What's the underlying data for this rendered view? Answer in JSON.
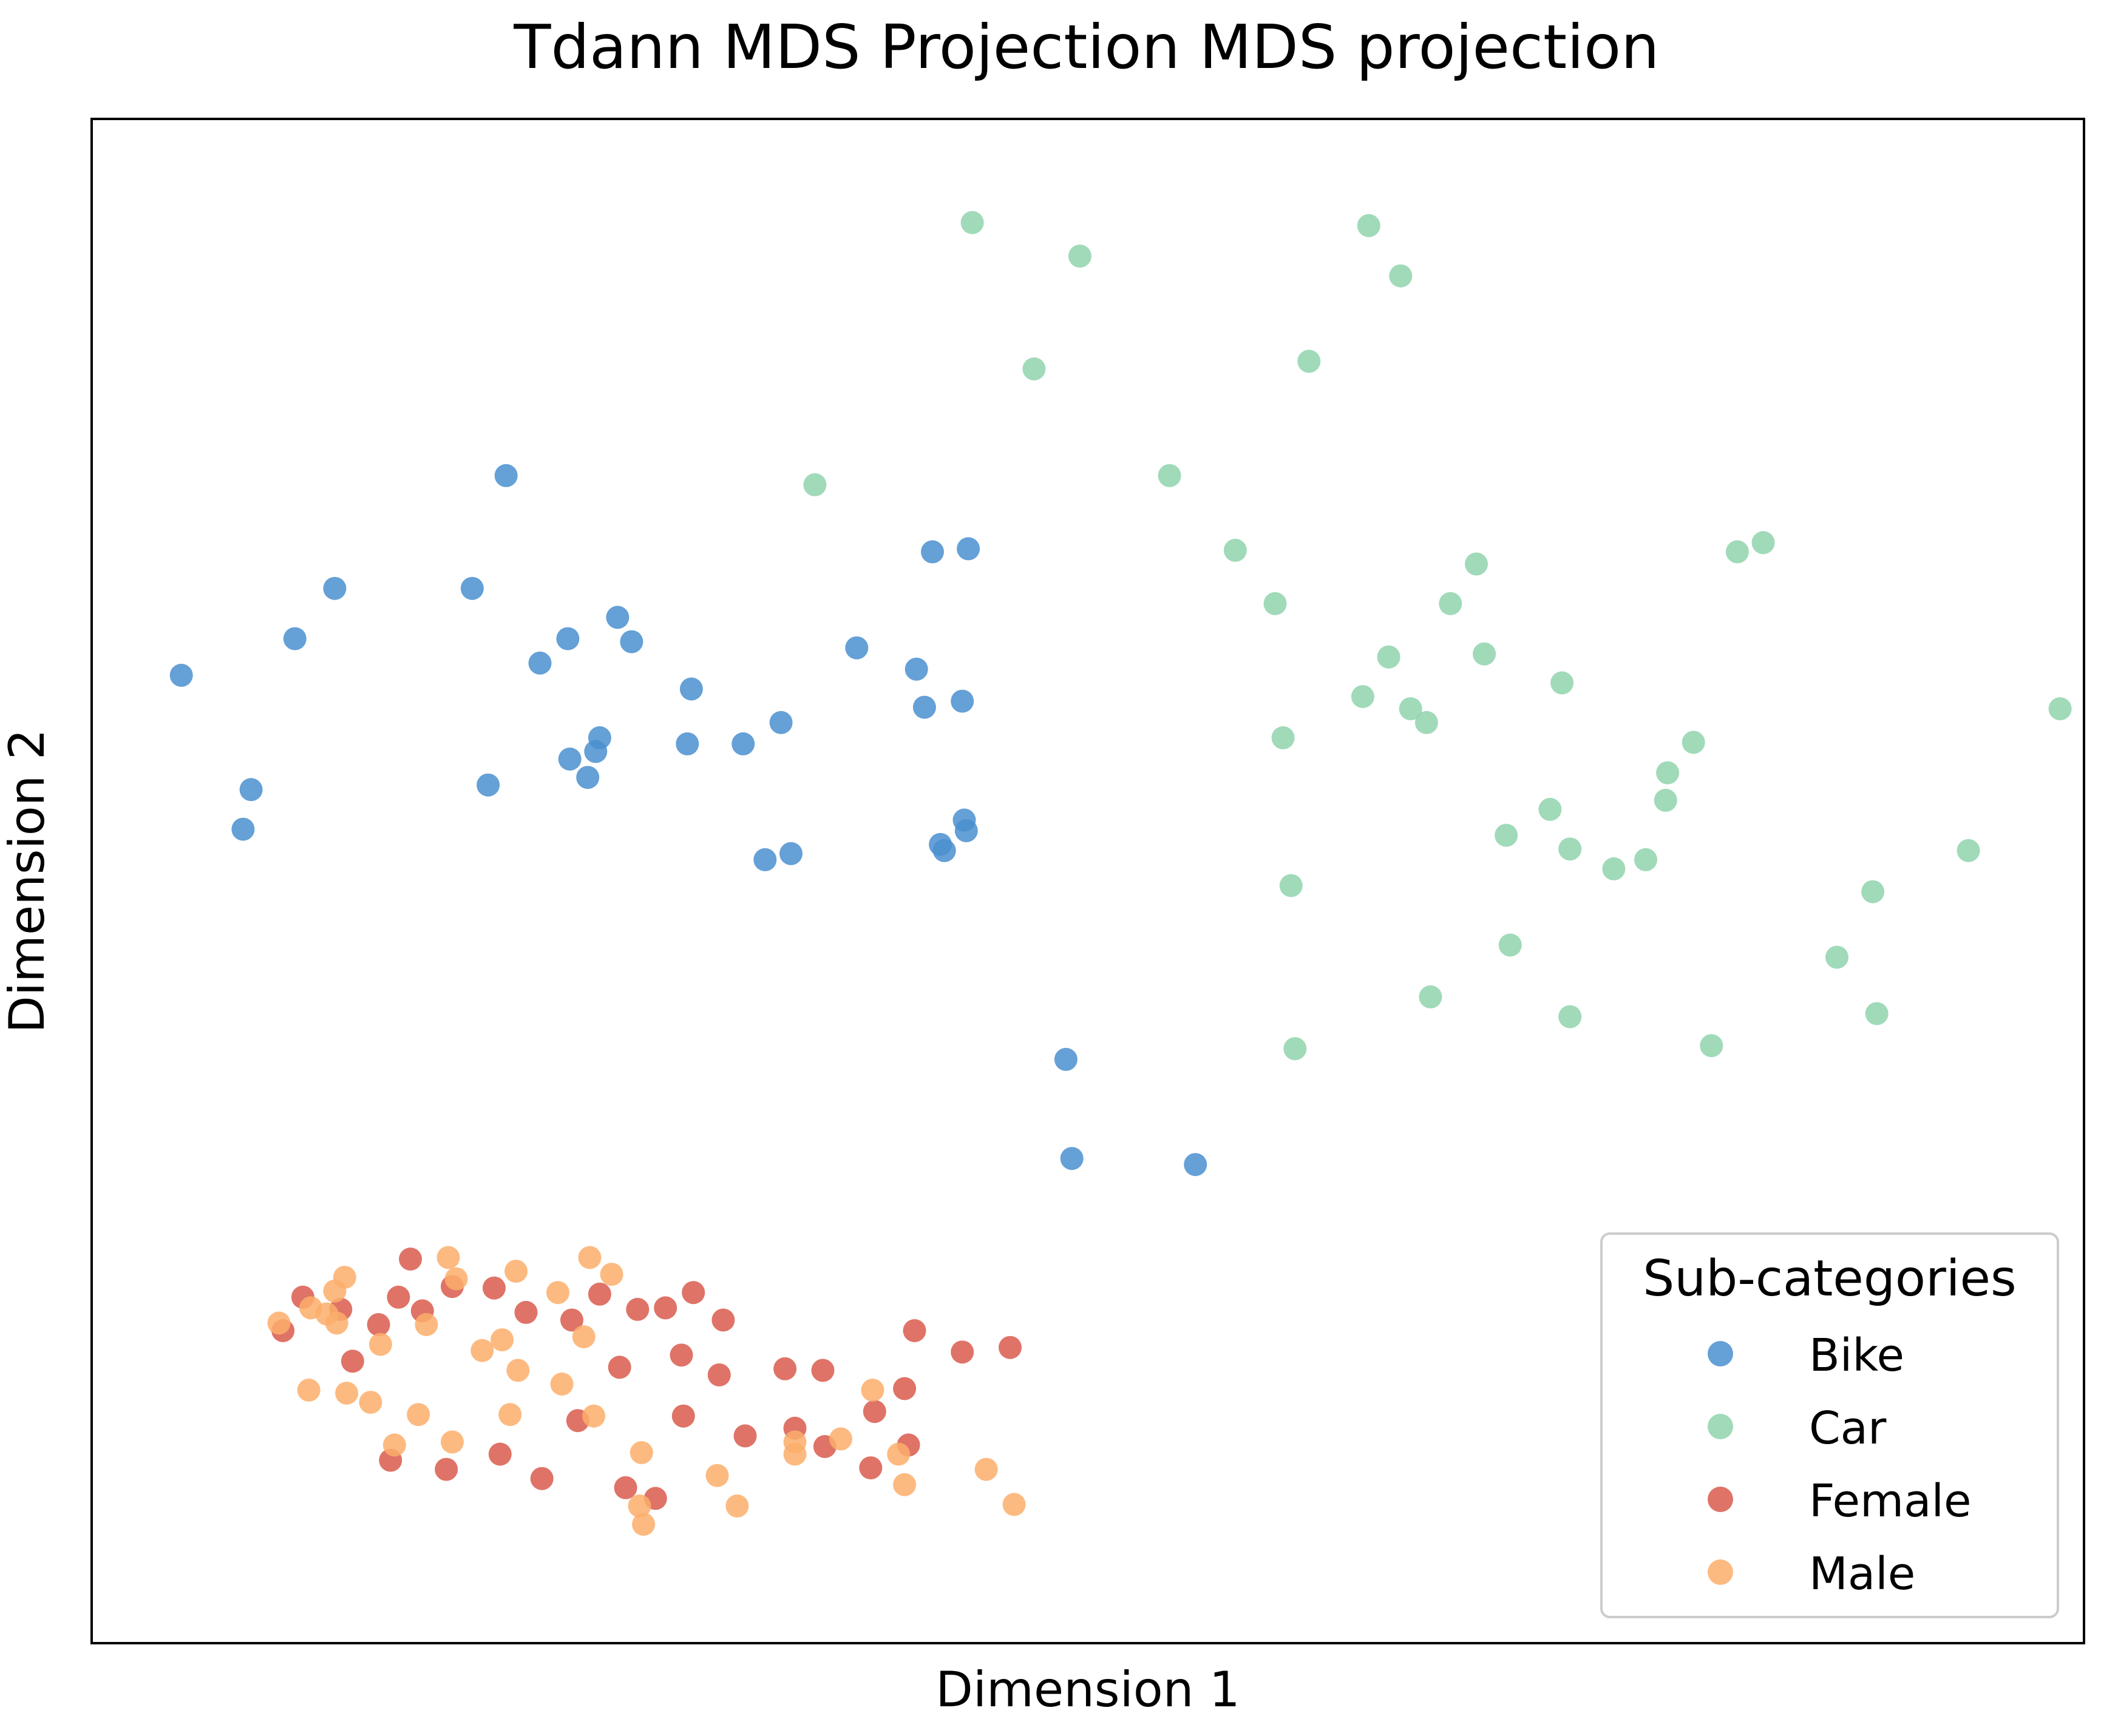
{
  "chart_data": {
    "type": "scatter",
    "title": "Tdann MDS Projection MDS projection",
    "xlabel": "Dimension 1",
    "ylabel": "Dimension 2",
    "xlim": [
      0,
      100
    ],
    "ylim": [
      0,
      100
    ],
    "xticks": false,
    "yticks": false,
    "grid": false,
    "legend": {
      "title": "Sub-categories",
      "placement": "lower-right"
    },
    "series": [
      {
        "name": "Bike",
        "color": "#4a8fcf",
        "points": [
          [
            4.5,
            63.5
          ],
          [
            8.0,
            56.0
          ],
          [
            7.6,
            53.4
          ],
          [
            12.2,
            69.2
          ],
          [
            10.2,
            65.9
          ],
          [
            22.5,
            64.3
          ],
          [
            19.1,
            69.2
          ],
          [
            20.8,
            76.6
          ],
          [
            23.9,
            65.9
          ],
          [
            24.9,
            56.8
          ],
          [
            19.9,
            56.3
          ],
          [
            26.4,
            67.3
          ],
          [
            27.1,
            65.7
          ],
          [
            29.9,
            59.0
          ],
          [
            30.1,
            62.6
          ],
          [
            32.7,
            59.0
          ],
          [
            33.8,
            51.4
          ],
          [
            34.6,
            60.4
          ],
          [
            38.4,
            65.3
          ],
          [
            42.2,
            71.6
          ],
          [
            44.0,
            71.8
          ],
          [
            41.4,
            63.9
          ],
          [
            41.8,
            61.4
          ],
          [
            43.7,
            61.8
          ],
          [
            43.8,
            54.0
          ],
          [
            43.9,
            53.3
          ],
          [
            42.6,
            52.4
          ],
          [
            25.3,
            58.5
          ],
          [
            24.0,
            58.0
          ],
          [
            25.5,
            59.4
          ],
          [
            35.1,
            51.8
          ],
          [
            42.8,
            52.0
          ],
          [
            48.9,
            38.3
          ],
          [
            49.2,
            31.8
          ],
          [
            55.4,
            31.4
          ]
        ]
      },
      {
        "name": "Car",
        "color": "#8fd3ad",
        "points": [
          [
            49.6,
            91.0
          ],
          [
            44.2,
            93.2
          ],
          [
            47.3,
            83.6
          ],
          [
            36.3,
            76.0
          ],
          [
            54.1,
            76.6
          ],
          [
            57.4,
            71.7
          ],
          [
            59.4,
            68.2
          ],
          [
            61.1,
            84.1
          ],
          [
            64.1,
            93.0
          ],
          [
            65.7,
            89.7
          ],
          [
            65.1,
            64.7
          ],
          [
            63.8,
            62.1
          ],
          [
            66.2,
            61.3
          ],
          [
            67.0,
            60.4
          ],
          [
            59.8,
            59.4
          ],
          [
            68.2,
            68.2
          ],
          [
            69.5,
            70.8
          ],
          [
            69.9,
            64.9
          ],
          [
            73.2,
            54.7
          ],
          [
            74.2,
            52.1
          ],
          [
            76.4,
            50.8
          ],
          [
            78.0,
            51.4
          ],
          [
            79.1,
            57.1
          ],
          [
            80.4,
            59.1
          ],
          [
            82.6,
            71.6
          ],
          [
            83.9,
            72.2
          ],
          [
            89.4,
            49.3
          ],
          [
            94.2,
            52.0
          ],
          [
            98.8,
            61.3
          ],
          [
            60.4,
            39.0
          ],
          [
            67.2,
            42.4
          ],
          [
            71.2,
            45.8
          ],
          [
            74.2,
            41.1
          ],
          [
            81.3,
            39.2
          ],
          [
            89.6,
            41.3
          ],
          [
            79.0,
            55.3
          ],
          [
            73.8,
            63.0
          ],
          [
            71.0,
            53.0
          ],
          [
            87.6,
            45.0
          ],
          [
            60.2,
            49.7
          ]
        ]
      },
      {
        "name": "Female",
        "color": "#d95a4c",
        "points": [
          [
            16.0,
            25.2
          ],
          [
            18.1,
            23.4
          ],
          [
            15.4,
            22.7
          ],
          [
            16.6,
            21.8
          ],
          [
            21.8,
            21.7
          ],
          [
            24.1,
            21.2
          ],
          [
            20.2,
            23.3
          ],
          [
            27.4,
            21.9
          ],
          [
            28.8,
            22.0
          ],
          [
            25.5,
            22.9
          ],
          [
            30.2,
            23.0
          ],
          [
            31.7,
            21.2
          ],
          [
            29.6,
            18.9
          ],
          [
            34.8,
            18.0
          ],
          [
            36.7,
            17.9
          ],
          [
            40.8,
            16.7
          ],
          [
            41.3,
            20.5
          ],
          [
            43.7,
            19.1
          ],
          [
            46.1,
            19.4
          ],
          [
            26.5,
            18.1
          ],
          [
            31.5,
            17.6
          ],
          [
            29.7,
            14.9
          ],
          [
            32.8,
            13.6
          ],
          [
            35.3,
            14.1
          ],
          [
            36.8,
            12.9
          ],
          [
            39.3,
            15.2
          ],
          [
            39.1,
            11.5
          ],
          [
            41.0,
            13.0
          ],
          [
            24.4,
            14.6
          ],
          [
            20.5,
            12.4
          ],
          [
            22.6,
            10.8
          ],
          [
            26.8,
            10.2
          ],
          [
            28.3,
            9.5
          ],
          [
            17.8,
            11.4
          ],
          [
            15.0,
            12.0
          ],
          [
            12.5,
            21.9
          ],
          [
            14.4,
            20.9
          ],
          [
            10.6,
            22.7
          ],
          [
            9.6,
            20.5
          ],
          [
            13.1,
            18.5
          ]
        ]
      },
      {
        "name": "Male",
        "color": "#fcae6b",
        "points": [
          [
            17.9,
            25.3
          ],
          [
            21.3,
            24.4
          ],
          [
            25.0,
            25.3
          ],
          [
            26.1,
            24.2
          ],
          [
            20.6,
            19.9
          ],
          [
            12.7,
            24.0
          ],
          [
            12.2,
            23.1
          ],
          [
            11.8,
            21.6
          ],
          [
            12.3,
            21.0
          ],
          [
            11.0,
            22.0
          ],
          [
            9.4,
            21.0
          ],
          [
            10.9,
            16.6
          ],
          [
            12.8,
            16.4
          ],
          [
            14.0,
            15.8
          ],
          [
            16.4,
            15.0
          ],
          [
            18.1,
            13.2
          ],
          [
            15.2,
            13.0
          ],
          [
            21.0,
            15.0
          ],
          [
            25.2,
            14.9
          ],
          [
            27.6,
            12.5
          ],
          [
            31.4,
            11.0
          ],
          [
            35.3,
            13.2
          ],
          [
            35.3,
            12.4
          ],
          [
            37.6,
            13.4
          ],
          [
            40.5,
            12.4
          ],
          [
            40.8,
            10.4
          ],
          [
            44.9,
            11.4
          ],
          [
            46.3,
            9.1
          ],
          [
            27.7,
            7.8
          ],
          [
            27.5,
            9.0
          ],
          [
            32.4,
            9.0
          ],
          [
            23.4,
            23.0
          ],
          [
            18.3,
            23.9
          ],
          [
            16.8,
            20.9
          ],
          [
            19.6,
            19.2
          ],
          [
            24.7,
            20.1
          ],
          [
            14.5,
            19.6
          ],
          [
            21.4,
            17.9
          ],
          [
            23.6,
            17.0
          ],
          [
            39.2,
            16.6
          ]
        ]
      }
    ]
  }
}
